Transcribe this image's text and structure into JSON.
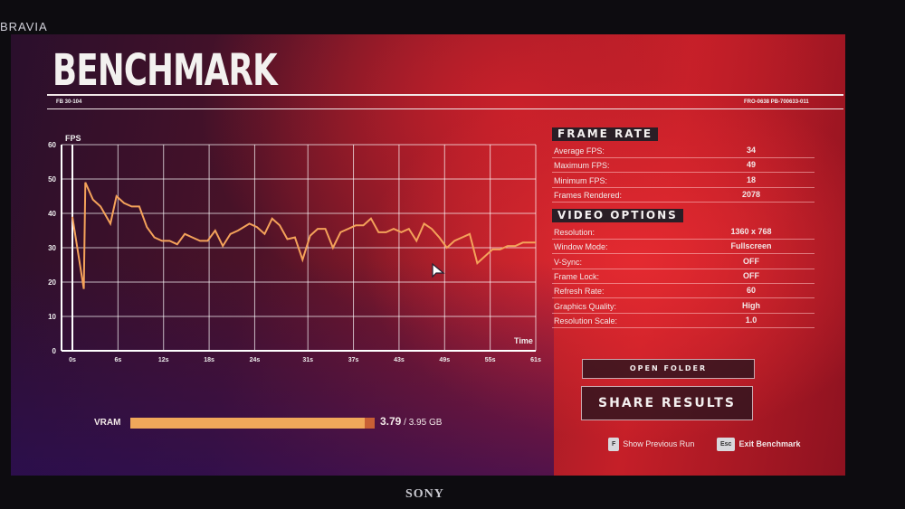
{
  "tv": {
    "brand_top": "BRAVIA",
    "brand_bottom": "SONY"
  },
  "header": {
    "title": "BENCHMARK",
    "code_left": "FB 30-104",
    "code_right": "FRO-0638 PB-700633-011"
  },
  "frame_rate": {
    "heading": "FRAME RATE",
    "rows": [
      {
        "label": "Average FPS:",
        "value": "34"
      },
      {
        "label": "Maximum FPS:",
        "value": "49"
      },
      {
        "label": "Minimum FPS:",
        "value": "18"
      },
      {
        "label": "Frames Rendered:",
        "value": "2078"
      }
    ]
  },
  "video_options": {
    "heading": "VIDEO OPTIONS",
    "rows": [
      {
        "label": "Resolution:",
        "value": "1360 x 768"
      },
      {
        "label": "Window Mode:",
        "value": "Fullscreen"
      },
      {
        "label": "V-Sync:",
        "value": "OFF"
      },
      {
        "label": "Frame Lock:",
        "value": "OFF"
      },
      {
        "label": "Refresh Rate:",
        "value": "60"
      },
      {
        "label": "Graphics Quality:",
        "value": "High"
      },
      {
        "label": "Resolution Scale:",
        "value": "1.0"
      }
    ]
  },
  "buttons": {
    "open_folder": "OPEN FOLDER",
    "share_results": "SHARE RESULTS"
  },
  "hints": [
    {
      "key": "F",
      "label": "Show Previous Run"
    },
    {
      "key": "Esc",
      "label": "Exit Benchmark"
    }
  ],
  "vram": {
    "label": "VRAM",
    "used": "3.79",
    "total": "/ 3.95 GB",
    "used_fraction": 0.96
  },
  "colors": {
    "line": "#f4a25a",
    "accent": "#d8202a",
    "vram_fill": "#f0a85a"
  },
  "chart_data": {
    "type": "line",
    "ylabel": "FPS",
    "xlabel": "Time",
    "ylim": [
      0,
      60
    ],
    "yticks": [
      "0",
      "10",
      "20",
      "30",
      "40",
      "50",
      "60"
    ],
    "xlim": [
      0,
      61
    ],
    "xticks": [
      "0s",
      "6s",
      "12s",
      "18s",
      "24s",
      "31s",
      "37s",
      "43s",
      "49s",
      "55s",
      "61s"
    ],
    "xtick_values": [
      0,
      6,
      12,
      18,
      24,
      31,
      37,
      43,
      49,
      55,
      61
    ],
    "grid": true,
    "series": [
      {
        "x": [
          0,
          1.5,
          1.7,
          2.7,
          3.7,
          5,
          5.8,
          6.8,
          7.8,
          8.8,
          9.8,
          10.8,
          11.8,
          12.8,
          13.8,
          14.8,
          15.8,
          16.8,
          17.8,
          18.8,
          19.8,
          20.8,
          21.8,
          23.3,
          24.3,
          25.3,
          26.3,
          27.3,
          28.3,
          29.3,
          30.3,
          31.3,
          32.3,
          33.3,
          34.3,
          35.3,
          36.3,
          37.3,
          38.3,
          39.3,
          40.3,
          41.3,
          42.3,
          43.3,
          44.3,
          45.3,
          46.3,
          47.3,
          48.3,
          49.3,
          50.3,
          51.3,
          52.3,
          53.3,
          54.3,
          55.3,
          56.3,
          57.3,
          58.3,
          59.3,
          61
        ],
        "y": [
          39,
          18,
          49,
          44,
          42,
          37,
          45,
          43,
          42,
          42,
          36,
          33,
          32,
          32,
          31,
          34,
          33,
          32,
          32,
          35,
          30.5,
          34,
          35,
          37,
          36,
          34,
          38.5,
          36.5,
          32.5,
          33,
          26.5,
          33.5,
          35.5,
          35.5,
          30,
          34.5,
          35.5,
          36.5,
          36.5,
          38.5,
          34.5,
          34.5,
          35.5,
          34.5,
          35.5,
          32,
          37,
          35.5,
          33,
          30,
          32,
          33,
          34,
          25.5,
          27.5,
          29.5,
          29.5,
          30.5,
          30.5,
          31.5,
          31.5
        ]
      }
    ]
  }
}
